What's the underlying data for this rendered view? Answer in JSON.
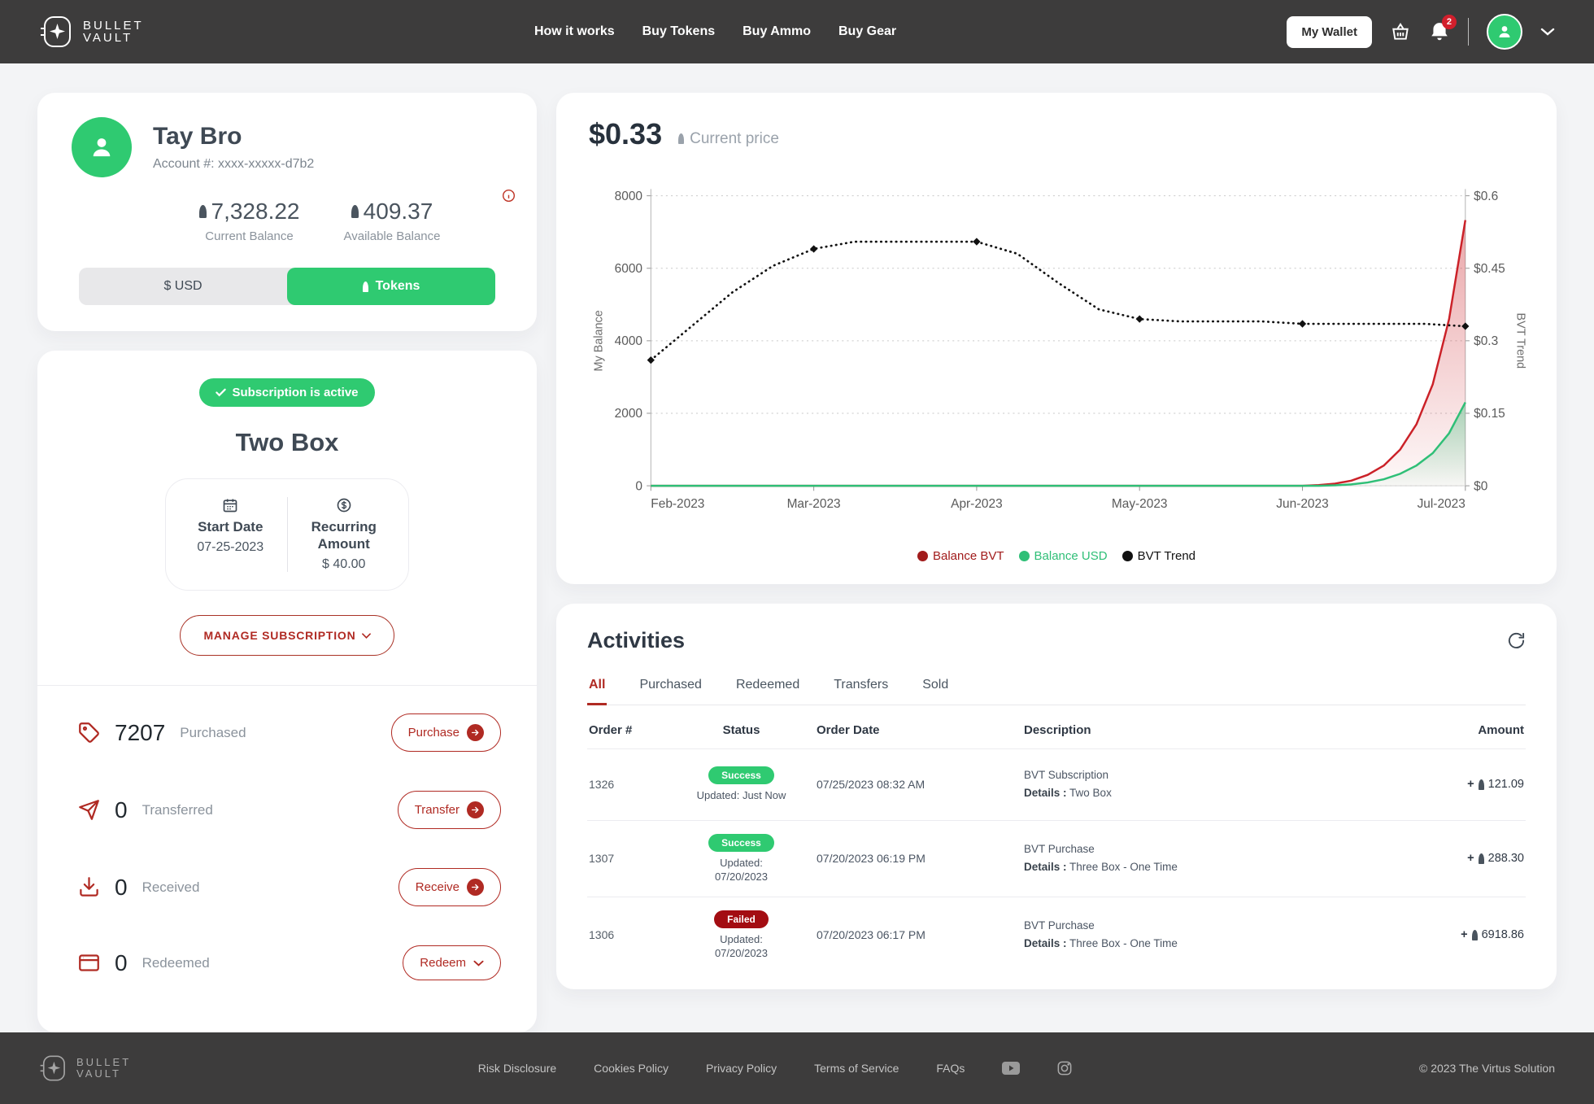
{
  "brand": {
    "line1": "BULLET",
    "line2": "VAULT"
  },
  "nav": {
    "links": [
      "How it works",
      "Buy Tokens",
      "Buy Ammo",
      "Buy Gear"
    ],
    "wallet_button": "My Wallet",
    "notification_count": "2"
  },
  "profile": {
    "name": "Tay Bro",
    "account": "Account #: xxxx-xxxxx-d7b2",
    "current_balance": "7,328.22",
    "current_balance_label": "Current Balance",
    "available_balance": "409.37",
    "available_balance_label": "Available Balance",
    "toggle_usd": "$ USD",
    "toggle_tokens": "Tokens"
  },
  "subscription": {
    "status_badge": "Subscription is active",
    "plan": "Two Box",
    "start_date_label": "Start Date",
    "start_date": "07-25-2023",
    "recurring_label": "Recurring Amount",
    "recurring_amount": "$ 40.00",
    "manage_button": "MANAGE SUBSCRIPTION"
  },
  "stats": [
    {
      "value": "7207",
      "label": "Purchased",
      "button": "Purchase"
    },
    {
      "value": "0",
      "label": "Transferred",
      "button": "Transfer"
    },
    {
      "value": "0",
      "label": "Received",
      "button": "Receive"
    },
    {
      "value": "0",
      "label": "Redeemed",
      "button": "Redeem"
    }
  ],
  "price": {
    "value": "$0.33",
    "label": "Current price"
  },
  "chart_data": {
    "type": "area",
    "x_labels": [
      "Feb-2023",
      "Mar-2023",
      "Apr-2023",
      "May-2023",
      "Jun-2023",
      "Jul-2023"
    ],
    "left_axis": {
      "label": "My Balance",
      "ticks": [
        "0",
        "2000",
        "4000",
        "6000",
        "8000"
      ],
      "range": [
        0,
        8000
      ]
    },
    "right_axis": {
      "label": "BVT Trend",
      "ticks": [
        "$0",
        "$0.15",
        "$0.3",
        "$0.45",
        "$0.6"
      ],
      "range": [
        0,
        0.6
      ]
    },
    "series": [
      {
        "name": "Balance BVT",
        "axis": "left",
        "style": "area",
        "color": "#cb2128",
        "x": [
          0,
          3.9,
          4.0,
          4.1,
          4.2,
          4.3,
          4.4,
          4.5,
          4.6,
          4.7,
          4.8,
          4.9,
          5
        ],
        "y": [
          0,
          0,
          0,
          20,
          60,
          140,
          300,
          560,
          1000,
          1700,
          2800,
          4600,
          7328
        ]
      },
      {
        "name": "Balance USD",
        "axis": "left",
        "style": "area",
        "color": "#2fbf77",
        "x": [
          0,
          4.0,
          4.1,
          4.2,
          4.3,
          4.4,
          4.5,
          4.6,
          4.7,
          4.8,
          4.9,
          5
        ],
        "y": [
          0,
          0,
          0,
          15,
          40,
          90,
          180,
          330,
          560,
          900,
          1450,
          2300
        ]
      },
      {
        "name": "BVT Trend",
        "axis": "right",
        "style": "dotted",
        "color": "#111111",
        "x": [
          0,
          0.25,
          0.5,
          0.75,
          1,
          1.25,
          1.5,
          1.75,
          2,
          2.25,
          2.5,
          2.75,
          3,
          3.25,
          3.5,
          3.75,
          4,
          4.25,
          4.5,
          4.75,
          5
        ],
        "y": [
          0.26,
          0.33,
          0.4,
          0.455,
          0.49,
          0.505,
          0.505,
          0.505,
          0.505,
          0.48,
          0.42,
          0.365,
          0.345,
          0.34,
          0.34,
          0.34,
          0.335,
          0.335,
          0.335,
          0.335,
          0.33
        ]
      }
    ],
    "legend": [
      {
        "label": "Balance BVT",
        "color": "#a11b1b"
      },
      {
        "label": "Balance USD",
        "color": "#2fbf77"
      },
      {
        "label": "BVT Trend",
        "color": "#111111"
      }
    ]
  },
  "activities": {
    "title": "Activities",
    "tabs": [
      "All",
      "Purchased",
      "Redeemed",
      "Transfers",
      "Sold"
    ],
    "active_tab": "All",
    "columns": [
      "Order #",
      "Status",
      "Order Date",
      "Description",
      "Amount"
    ],
    "amount_prefix": "+",
    "rows": [
      {
        "order": "1326",
        "status": "Success",
        "status_class": "success",
        "updated": "Updated: Just Now",
        "date": "07/25/2023 08:32 AM",
        "desc_line1": "BVT Subscription",
        "desc_label": "Details :",
        "desc_value": "Two Box",
        "amount": "121.09"
      },
      {
        "order": "1307",
        "status": "Success",
        "status_class": "success",
        "updated": "Updated: 07/20/2023",
        "date": "07/20/2023 06:19 PM",
        "desc_line1": "BVT Purchase",
        "desc_label": "Details :",
        "desc_value": "Three Box - One Time",
        "amount": "288.30"
      },
      {
        "order": "1306",
        "status": "Failed",
        "status_class": "failed",
        "updated": "Updated: 07/20/2023",
        "date": "07/20/2023 06:17 PM",
        "desc_line1": "BVT Purchase",
        "desc_label": "Details :",
        "desc_value": "Three Box - One Time",
        "amount": "6918.86"
      }
    ]
  },
  "footer": {
    "links": [
      "Risk Disclosure",
      "Cookies Policy",
      "Privacy Policy",
      "Terms of Service",
      "FAQs"
    ],
    "copyright": "© 2023 The Virtus Solution"
  },
  "colors": {
    "accent_green": "#2fca71",
    "accent_red": "#b02a23",
    "header_bg": "#3d3c3c",
    "success_badge": "#2fca71",
    "failed_badge": "#a30d12"
  }
}
